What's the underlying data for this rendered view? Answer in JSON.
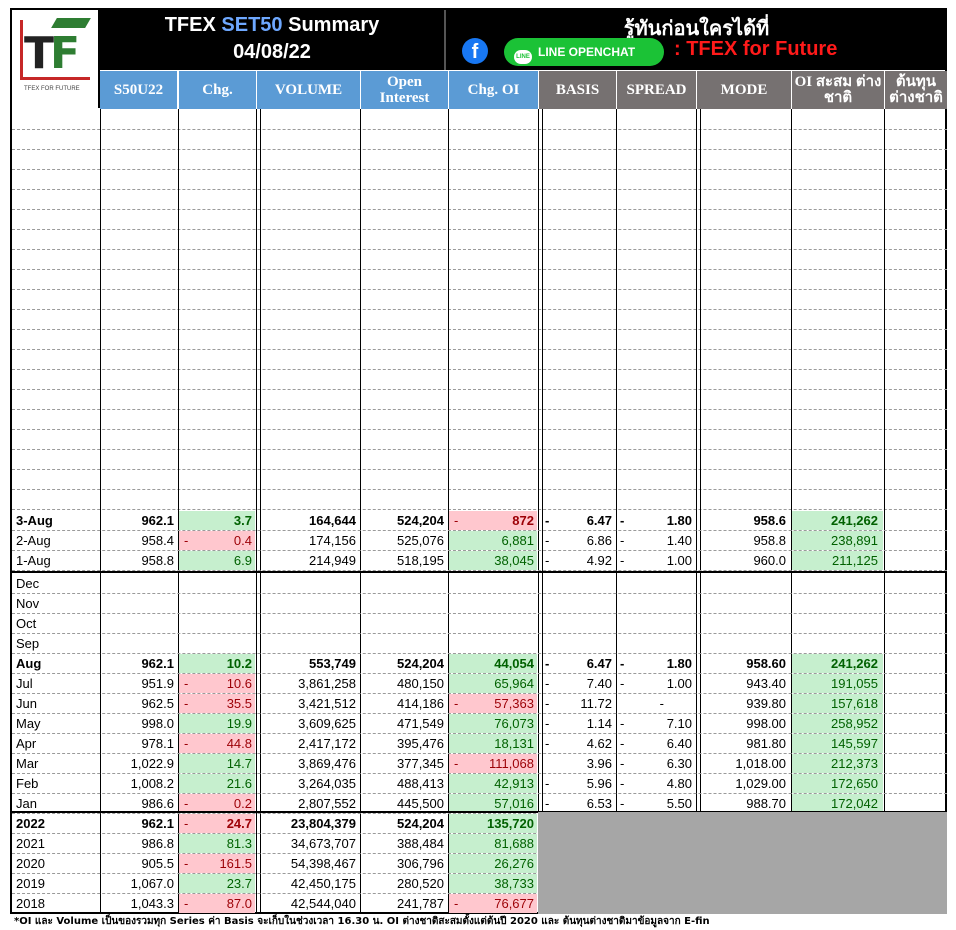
{
  "header": {
    "title_prefix": "TFEX ",
    "title_highlight": "SET50",
    "title_suffix": " Summary",
    "date": "04/08/22",
    "slogan": "รู้ทันก่อนใครได้ที่",
    "line_label": "LINE OPENCHAT",
    "group_name": ": TFEX for Future",
    "logo_text": "TFEX FOR FUTURE"
  },
  "columns": [
    "S50U22",
    "Chg.",
    "VOLUME",
    "Open Interest",
    "Chg. OI",
    "BASIS",
    "SPREAD",
    "MODE",
    "OI สะสม ต่างชาติ",
    "ต้นทุน ต่างชาติ"
  ],
  "daily": [
    {
      "label": "3-Aug",
      "price": "962.1",
      "chg": "3.7",
      "chg_dir": "up",
      "volume": "164,644",
      "oi": "524,204",
      "chg_oi": "872",
      "chg_oi_dir": "down",
      "basis_sign": "-",
      "basis": "6.47",
      "spread_sign": "-",
      "spread": "1.80",
      "mode": "958.6",
      "oi_foreign": "241,262",
      "bold": true
    },
    {
      "label": "2-Aug",
      "price": "958.4",
      "chg": "0.4",
      "chg_dir": "down",
      "volume": "174,156",
      "oi": "525,076",
      "chg_oi": "6,881",
      "chg_oi_dir": "up",
      "basis_sign": "-",
      "basis": "6.86",
      "spread_sign": "-",
      "spread": "1.40",
      "mode": "958.8",
      "oi_foreign": "238,891",
      "bold": false
    },
    {
      "label": "1-Aug",
      "price": "958.8",
      "chg": "6.9",
      "chg_dir": "up",
      "volume": "214,949",
      "oi": "518,195",
      "chg_oi": "38,045",
      "chg_oi_dir": "up",
      "basis_sign": "-",
      "basis": "4.92",
      "spread_sign": "-",
      "spread": "1.00",
      "mode": "960.0",
      "oi_foreign": "211,125",
      "bold": false
    }
  ],
  "monthly": [
    {
      "label": "Dec"
    },
    {
      "label": "Nov"
    },
    {
      "label": "Oct"
    },
    {
      "label": "Sep"
    },
    {
      "label": "Aug",
      "price": "962.1",
      "chg": "10.2",
      "chg_dir": "up",
      "volume": "553,749",
      "oi": "524,204",
      "chg_oi": "44,054",
      "chg_oi_dir": "up",
      "basis_sign": "-",
      "basis": "6.47",
      "spread_sign": "-",
      "spread": "1.80",
      "mode": "958.60",
      "oi_foreign": "241,262",
      "bold": true
    },
    {
      "label": "Jul",
      "price": "951.9",
      "chg": "10.6",
      "chg_dir": "down",
      "volume": "3,861,258",
      "oi": "480,150",
      "chg_oi": "65,964",
      "chg_oi_dir": "up",
      "basis_sign": "-",
      "basis": "7.40",
      "spread_sign": "-",
      "spread": "1.00",
      "mode": "943.40",
      "oi_foreign": "191,055"
    },
    {
      "label": "Jun",
      "price": "962.5",
      "chg": "35.5",
      "chg_dir": "down",
      "volume": "3,421,512",
      "oi": "414,186",
      "chg_oi": "57,363",
      "chg_oi_dir": "down",
      "basis_sign": "-",
      "basis": "11.72",
      "spread_sign": "",
      "spread": "-",
      "mode": "939.80",
      "oi_foreign": "157,618"
    },
    {
      "label": "May",
      "price": "998.0",
      "chg": "19.9",
      "chg_dir": "up",
      "volume": "3,609,625",
      "oi": "471,549",
      "chg_oi": "76,073",
      "chg_oi_dir": "up",
      "basis_sign": "-",
      "basis": "1.14",
      "spread_sign": "-",
      "spread": "7.10",
      "mode": "998.00",
      "oi_foreign": "258,952"
    },
    {
      "label": "Apr",
      "price": "978.1",
      "chg": "44.8",
      "chg_dir": "down",
      "volume": "2,417,172",
      "oi": "395,476",
      "chg_oi": "18,131",
      "chg_oi_dir": "up",
      "basis_sign": "-",
      "basis": "4.62",
      "spread_sign": "-",
      "spread": "6.40",
      "mode": "981.80",
      "oi_foreign": "145,597"
    },
    {
      "label": "Mar",
      "price": "1,022.9",
      "chg": "14.7",
      "chg_dir": "up",
      "volume": "3,869,476",
      "oi": "377,345",
      "chg_oi": "111,068",
      "chg_oi_dir": "down",
      "basis_sign": "",
      "basis": "3.96",
      "spread_sign": "-",
      "spread": "6.30",
      "mode": "1,018.00",
      "oi_foreign": "212,373"
    },
    {
      "label": "Feb",
      "price": "1,008.2",
      "chg": "21.6",
      "chg_dir": "up",
      "volume": "3,264,035",
      "oi": "488,413",
      "chg_oi": "42,913",
      "chg_oi_dir": "up",
      "basis_sign": "-",
      "basis": "5.96",
      "spread_sign": "-",
      "spread": "4.80",
      "mode": "1,029.00",
      "oi_foreign": "172,650"
    },
    {
      "label": "Jan",
      "price": "986.6",
      "chg": "0.2",
      "chg_dir": "down",
      "volume": "2,807,552",
      "oi": "445,500",
      "chg_oi": "57,016",
      "chg_oi_dir": "up",
      "basis_sign": "-",
      "basis": "6.53",
      "spread_sign": "-",
      "spread": "5.50",
      "mode": "988.70",
      "oi_foreign": "172,042"
    }
  ],
  "yearly": [
    {
      "label": "2022",
      "price": "962.1",
      "chg": "24.7",
      "chg_dir": "down",
      "volume": "23,804,379",
      "oi": "524,204",
      "chg_oi": "135,720",
      "chg_oi_dir": "up",
      "bold": true
    },
    {
      "label": "2021",
      "price": "986.8",
      "chg": "81.3",
      "chg_dir": "up",
      "volume": "34,673,707",
      "oi": "388,484",
      "chg_oi": "81,688",
      "chg_oi_dir": "up"
    },
    {
      "label": "2020",
      "price": "905.5",
      "chg": "161.5",
      "chg_dir": "down",
      "volume": "54,398,467",
      "oi": "306,796",
      "chg_oi": "26,276",
      "chg_oi_dir": "up"
    },
    {
      "label": "2019",
      "price": "1,067.0",
      "chg": "23.7",
      "chg_dir": "up",
      "volume": "42,450,175",
      "oi": "280,520",
      "chg_oi": "38,733",
      "chg_oi_dir": "up"
    },
    {
      "label": "2018",
      "price": "1,043.3",
      "chg": "87.0",
      "chg_dir": "down",
      "volume": "42,544,040",
      "oi": "241,787",
      "chg_oi": "76,677",
      "chg_oi_dir": "down"
    }
  ],
  "footnote": "*OI และ Volume เป็นของรวมทุก Series ค่า Basis จะเก็บในช่วงเวลา 16.30 น. OI ต่างชาติสะสมตั้งแต่ต้นปี 2020 และ ต้นทุนต่างชาติมาข้อมูลจาก E-fin",
  "colors": {
    "up_fill": "#c6efce",
    "up_text": "#006100",
    "down_fill": "#ffc7ce",
    "down_text": "#9c0006",
    "header_blue": "#5b9bd5",
    "header_grey": "#767171"
  }
}
